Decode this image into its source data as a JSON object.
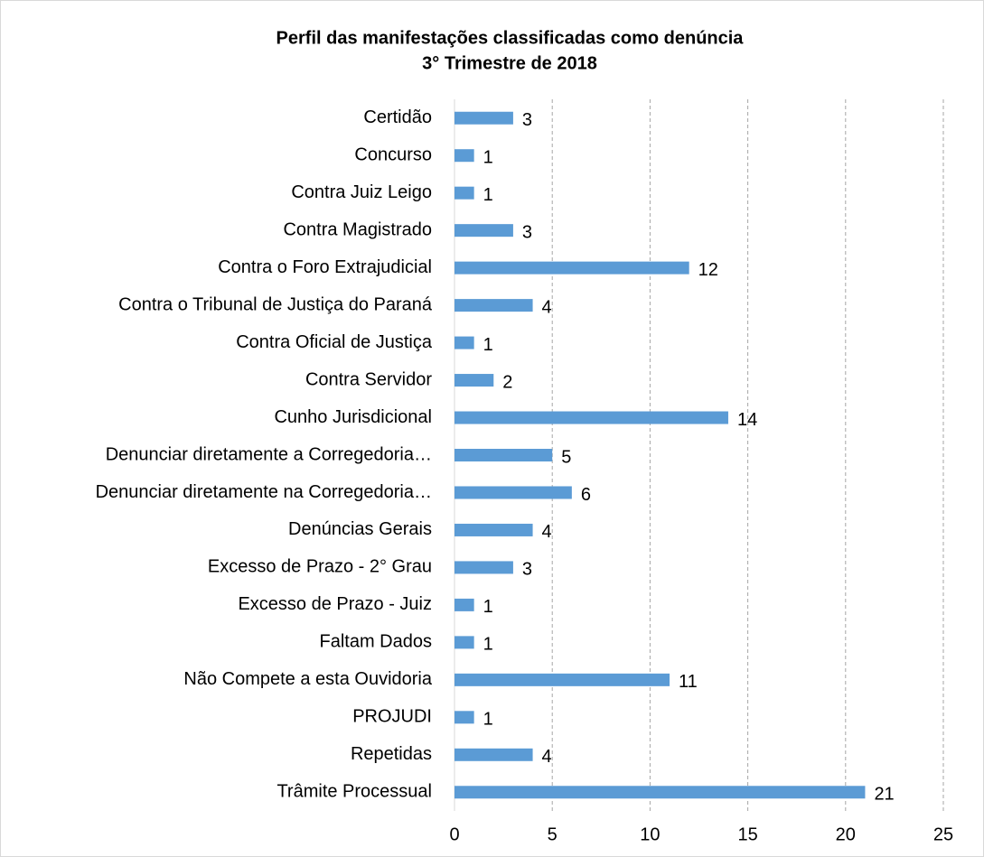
{
  "chart_data": {
    "type": "bar",
    "orientation": "horizontal",
    "title": "Perfil das manifestações classificadas como denúncia",
    "subtitle": "3° Trimestre de 2018",
    "categories": [
      "Certidão",
      "Concurso",
      "Contra Juiz Leigo",
      "Contra Magistrado",
      "Contra o Foro Extrajudicial",
      "Contra o Tribunal de Justiça do Paraná",
      "Contra Oficial de Justiça",
      "Contra Servidor",
      "Cunho Jurisdicional",
      "Denunciar diretamente a Corregedoria…",
      "Denunciar diretamente na Corregedoria…",
      "Denúncias Gerais",
      "Excesso de Prazo - 2° Grau",
      "Excesso de Prazo - Juiz",
      "Faltam Dados",
      "Não Compete a esta Ouvidoria",
      "PROJUDI",
      "Repetidas",
      "Trâmite Processual"
    ],
    "values": [
      3,
      1,
      1,
      3,
      12,
      4,
      1,
      2,
      14,
      5,
      6,
      4,
      3,
      1,
      1,
      11,
      1,
      4,
      21
    ],
    "color": "#5b9bd5",
    "xlim": [
      0,
      25
    ],
    "xticks": [
      0,
      5,
      10,
      15,
      20,
      25
    ],
    "grid": true
  }
}
